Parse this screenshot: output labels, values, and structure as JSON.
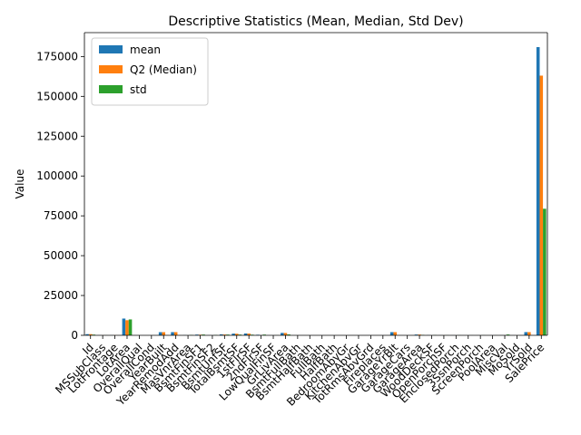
{
  "chart_data": {
    "type": "bar",
    "title": "Descriptive Statistics (Mean, Median, Std Dev)",
    "xlabel": "",
    "ylabel": "Value",
    "ylim": [
      0,
      190000
    ],
    "yticks": [
      0,
      25000,
      50000,
      75000,
      100000,
      125000,
      150000,
      175000
    ],
    "legend_position": "top-left",
    "grid": false,
    "categories": [
      "Id",
      "MSSubClass",
      "LotFrontage",
      "LotArea",
      "OverallQual",
      "OverallCond",
      "YearBuilt",
      "YearRemodAdd",
      "MasVnrArea",
      "BsmtFinSF1",
      "BsmtFinSF2",
      "BsmtUnfSF",
      "TotalBsmtSF",
      "1stFlrSF",
      "2ndFlrSF",
      "LowQualFinSF",
      "GrLivArea",
      "BsmtFullBath",
      "BsmtHalfBath",
      "FullBath",
      "HalfBath",
      "BedroomAbvGr",
      "KitchenAbvGr",
      "TotRmsAbvGrd",
      "Fireplaces",
      "GarageYrBlt",
      "GarageCars",
      "GarageArea",
      "WoodDeckSF",
      "OpenPorchSF",
      "EnclosedPorch",
      "3SsnPorch",
      "ScreenPorch",
      "PoolArea",
      "MiscVal",
      "MoSold",
      "YrSold",
      "SalePrice"
    ],
    "series": [
      {
        "name": "mean",
        "color": "#1f77b4",
        "values": [
          730.5,
          56.9,
          70.0,
          10516.8,
          6.1,
          5.6,
          1971.3,
          1984.9,
          103.7,
          443.6,
          46.5,
          567.2,
          1057.4,
          1162.6,
          347.0,
          5.8,
          1515.5,
          0.4,
          0.06,
          1.6,
          0.4,
          2.9,
          1.0,
          6.5,
          0.6,
          1978.5,
          1.8,
          473.0,
          94.2,
          46.7,
          22.0,
          3.4,
          15.1,
          2.8,
          43.5,
          6.3,
          2007.8,
          180921.2
        ]
      },
      {
        "name": "Q2 (Median)",
        "color": "#ff7f0e",
        "values": [
          730.5,
          50,
          69,
          9478.5,
          6,
          5,
          1973,
          1994,
          0,
          383.5,
          0,
          477.5,
          991.5,
          1087,
          0,
          0,
          1464,
          0,
          0,
          2,
          0,
          3,
          1,
          6,
          1,
          1980,
          2,
          480,
          0,
          25,
          0,
          0,
          0,
          0,
          0,
          6,
          2008,
          163000
        ]
      },
      {
        "name": "std",
        "color": "#2ca02c",
        "values": [
          421.6,
          42.3,
          24.3,
          9981.3,
          1.4,
          1.1,
          30.2,
          20.6,
          181.1,
          456.1,
          161.3,
          441.9,
          438.7,
          386.6,
          436.5,
          48.6,
          525.5,
          0.5,
          0.2,
          0.6,
          0.5,
          0.8,
          0.2,
          1.6,
          0.6,
          24.7,
          0.7,
          213.8,
          125.3,
          66.3,
          61.1,
          29.3,
          55.8,
          40.2,
          496.1,
          2.7,
          1.3,
          79442.5
        ]
      }
    ]
  }
}
